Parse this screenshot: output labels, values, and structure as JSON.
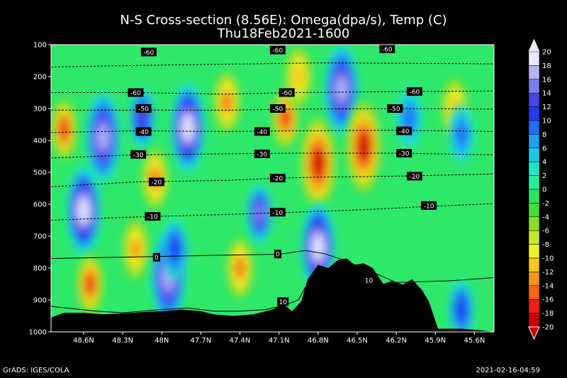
{
  "title": "N-S Cross-section (8.56E): Omega(dpa/s), Temp (C)",
  "subtitle": "Thu18Feb2021-1600",
  "footer_left": "GrADS: IGES/COLA",
  "footer_right": "2021-02-16-04:59",
  "chart_data": {
    "type": "heatmap",
    "x_axis_ticks": [
      "48.6N",
      "48.3N",
      "48N",
      "47.7N",
      "47.4N",
      "47.1N",
      "46.8N",
      "46.5N",
      "46.2N",
      "45.9N",
      "45.6N"
    ],
    "x_axis_values": [
      48.6,
      48.3,
      48.0,
      47.7,
      47.4,
      47.1,
      46.8,
      46.5,
      46.2,
      45.9,
      45.6
    ],
    "xlim": [
      48.85,
      45.45
    ],
    "y_axis_ticks": [
      "100",
      "200",
      "300",
      "400",
      "500",
      "600",
      "700",
      "800",
      "900",
      "1000"
    ],
    "ylim": [
      100,
      1000
    ],
    "colorbar_ticks": [
      "20",
      "18",
      "16",
      "14",
      "12",
      "10",
      "8",
      "6",
      "4",
      "2",
      "0",
      "-2",
      "-4",
      "-6",
      "-8",
      "-10",
      "-12",
      "-14",
      "-16",
      "-18",
      "-20"
    ],
    "colorbar_colors": [
      "#e8e8ff",
      "#b4b4f5",
      "#7d7df2",
      "#4646e6",
      "#1e3cf0",
      "#1e6ef5",
      "#1ea0f5",
      "#1ec8eb",
      "#1ee6c8",
      "#22f0a0",
      "#28e664",
      "#46dc32",
      "#8cdc28",
      "#c8e628",
      "#f0f028",
      "#f5c81e",
      "#f59614",
      "#f56414",
      "#f01e14",
      "#c80000"
    ],
    "omega_features": [
      {
        "lat": 48.75,
        "p": 365,
        "value": -16
      },
      {
        "lat": 48.6,
        "p": 620,
        "value": 20
      },
      {
        "lat": 48.55,
        "p": 850,
        "value": -16
      },
      {
        "lat": 48.45,
        "p": 390,
        "value": 18
      },
      {
        "lat": 48.2,
        "p": 740,
        "value": -12
      },
      {
        "lat": 48.15,
        "p": 330,
        "value": 14
      },
      {
        "lat": 48.05,
        "p": 520,
        "value": -14
      },
      {
        "lat": 47.95,
        "p": 830,
        "value": 18
      },
      {
        "lat": 47.9,
        "p": 740,
        "value": 12
      },
      {
        "lat": 47.8,
        "p": 360,
        "value": 20
      },
      {
        "lat": 47.5,
        "p": 280,
        "value": -14
      },
      {
        "lat": 47.4,
        "p": 800,
        "value": -14
      },
      {
        "lat": 47.25,
        "p": 630,
        "value": 16
      },
      {
        "lat": 47.05,
        "p": 330,
        "value": -16
      },
      {
        "lat": 46.95,
        "p": 200,
        "value": -10
      },
      {
        "lat": 46.8,
        "p": 470,
        "value": -20
      },
      {
        "lat": 46.8,
        "p": 735,
        "value": 20
      },
      {
        "lat": 46.62,
        "p": 240,
        "value": 18
      },
      {
        "lat": 46.45,
        "p": 420,
        "value": -20
      },
      {
        "lat": 46.1,
        "p": 330,
        "value": 10
      },
      {
        "lat": 45.75,
        "p": 300,
        "value": -10
      },
      {
        "lat": 45.7,
        "p": 380,
        "value": 10
      },
      {
        "lat": 45.7,
        "p": 930,
        "value": 12
      }
    ],
    "temperature_contours": [
      {
        "label": "-60",
        "points": [
          [
            48.85,
            170
          ],
          [
            48.2,
            165
          ],
          [
            47.3,
            160
          ],
          [
            46.8,
            157
          ],
          [
            46.3,
            158
          ],
          [
            45.45,
            160
          ]
        ]
      },
      {
        "label": "-60",
        "points": [
          [
            48.85,
            250
          ],
          [
            48.2,
            250
          ],
          [
            47.5,
            255
          ],
          [
            47.0,
            250
          ],
          [
            46.2,
            247
          ],
          [
            45.45,
            245
          ]
        ]
      },
      {
        "label": "-50",
        "points": [
          [
            48.85,
            305
          ],
          [
            48.2,
            305
          ],
          [
            47.5,
            305
          ],
          [
            47.0,
            302
          ],
          [
            46.2,
            300
          ],
          [
            45.45,
            302
          ]
        ]
      },
      {
        "label": "-40",
        "points": [
          [
            48.85,
            375
          ],
          [
            48.2,
            370
          ],
          [
            47.5,
            372
          ],
          [
            47.0,
            370
          ],
          [
            46.2,
            368
          ],
          [
            45.45,
            372
          ]
        ]
      },
      {
        "label": "-30",
        "points": [
          [
            48.85,
            455
          ],
          [
            48.2,
            445
          ],
          [
            47.5,
            442
          ],
          [
            47.0,
            440
          ],
          [
            46.2,
            440
          ],
          [
            45.45,
            445
          ]
        ]
      },
      {
        "label": "-20",
        "points": [
          [
            48.85,
            545
          ],
          [
            48.2,
            530
          ],
          [
            47.5,
            525
          ],
          [
            47.1,
            518
          ],
          [
            46.8,
            515
          ],
          [
            46.2,
            512
          ],
          [
            45.45,
            505
          ]
        ]
      },
      {
        "label": "-10",
        "points": [
          [
            48.85,
            650
          ],
          [
            48.2,
            640
          ],
          [
            47.5,
            632
          ],
          [
            47.0,
            625
          ],
          [
            46.5,
            618
          ],
          [
            46.0,
            608
          ],
          [
            45.45,
            598
          ]
        ]
      },
      {
        "label": "0",
        "points": [
          [
            48.85,
            770
          ],
          [
            48.2,
            765
          ],
          [
            47.6,
            760
          ],
          [
            47.1,
            757
          ],
          [
            46.9,
            745
          ],
          [
            46.75,
            755
          ],
          [
            46.6,
            775
          ],
          [
            46.4,
            810
          ],
          [
            46.2,
            845
          ],
          [
            45.8,
            840
          ],
          [
            45.45,
            830
          ]
        ]
      },
      {
        "label": "10",
        "points": [
          [
            48.85,
            920
          ],
          [
            48.5,
            935
          ],
          [
            48.3,
            940
          ],
          [
            48.0,
            930
          ],
          [
            47.8,
            925
          ],
          [
            47.6,
            935
          ],
          [
            47.4,
            935
          ],
          [
            47.2,
            930
          ],
          [
            47.05,
            915
          ],
          [
            46.95,
            900
          ],
          [
            46.9,
            860
          ]
        ]
      }
    ],
    "contour_labels": [
      {
        "text": "-60",
        "lat": 48.1,
        "p": 123
      },
      {
        "text": "-60",
        "lat": 47.11,
        "p": 117
      },
      {
        "text": "-60",
        "lat": 46.27,
        "p": 113
      },
      {
        "text": "-60",
        "lat": 48.2,
        "p": 250
      },
      {
        "text": "-60",
        "lat": 47.04,
        "p": 250
      },
      {
        "text": "-60",
        "lat": 46.06,
        "p": 247
      },
      {
        "text": "-50",
        "lat": 48.14,
        "p": 300
      },
      {
        "text": "-50",
        "lat": 47.11,
        "p": 300
      },
      {
        "text": "-50",
        "lat": 46.21,
        "p": 300
      },
      {
        "text": "-40",
        "lat": 48.14,
        "p": 372
      },
      {
        "text": "-40",
        "lat": 47.23,
        "p": 372
      },
      {
        "text": "-40",
        "lat": 46.14,
        "p": 370
      },
      {
        "text": "-30",
        "lat": 48.18,
        "p": 444
      },
      {
        "text": "-30",
        "lat": 47.23,
        "p": 442
      },
      {
        "text": "-30",
        "lat": 46.14,
        "p": 440
      },
      {
        "text": "-20",
        "lat": 48.04,
        "p": 530
      },
      {
        "text": "-20",
        "lat": 47.11,
        "p": 518
      },
      {
        "text": "-20",
        "lat": 46.06,
        "p": 512
      },
      {
        "text": "-10",
        "lat": 48.07,
        "p": 638
      },
      {
        "text": "-10",
        "lat": 47.11,
        "p": 625
      },
      {
        "text": "-10",
        "lat": 45.95,
        "p": 604
      },
      {
        "text": "0",
        "lat": 48.04,
        "p": 766
      },
      {
        "text": "0",
        "lat": 47.11,
        "p": 756
      },
      {
        "text": "10",
        "lat": 47.07,
        "p": 905
      },
      {
        "text": "10",
        "lat": 46.41,
        "p": 838
      }
    ],
    "terrain_surface_pressure": [
      [
        48.85,
        955
      ],
      [
        48.75,
        940
      ],
      [
        48.6,
        940
      ],
      [
        48.45,
        945
      ],
      [
        48.3,
        942
      ],
      [
        48.15,
        938
      ],
      [
        48.0,
        935
      ],
      [
        47.85,
        930
      ],
      [
        47.7,
        935
      ],
      [
        47.6,
        945
      ],
      [
        47.45,
        950
      ],
      [
        47.3,
        945
      ],
      [
        47.15,
        930
      ],
      [
        47.07,
        912
      ],
      [
        47.0,
        935
      ],
      [
        46.93,
        905
      ],
      [
        46.88,
        835
      ],
      [
        46.8,
        790
      ],
      [
        46.72,
        800
      ],
      [
        46.65,
        775
      ],
      [
        46.58,
        770
      ],
      [
        46.52,
        790
      ],
      [
        46.45,
        785
      ],
      [
        46.38,
        800
      ],
      [
        46.3,
        850
      ],
      [
        46.23,
        840
      ],
      [
        46.15,
        852
      ],
      [
        46.08,
        835
      ],
      [
        46.0,
        870
      ],
      [
        45.95,
        905
      ],
      [
        45.88,
        990
      ],
      [
        45.7,
        990
      ],
      [
        45.55,
        995
      ],
      [
        45.45,
        1000
      ]
    ]
  }
}
